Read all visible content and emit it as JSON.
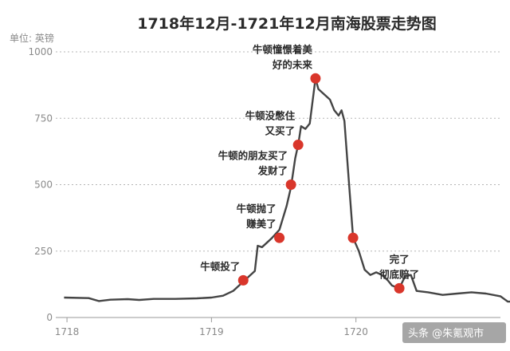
{
  "chart_data": {
    "type": "line",
    "title": "1718年12月-1721年12月南海股票走势图",
    "unit_label": "单位: 英镑",
    "xlim": [
      1717.95,
      1721.0
    ],
    "ylim": [
      0,
      1000
    ],
    "yticks": [
      0,
      250,
      500,
      750,
      1000
    ],
    "ytick_labels": [
      "0",
      "250",
      "500",
      "750",
      "1000"
    ],
    "xticks": [
      1718,
      1719,
      1720
    ],
    "xtick_labels": [
      "1718",
      "1719",
      "1720"
    ],
    "grid": true,
    "line_color": "#444444",
    "marker_color": "#d9362b",
    "series": [
      {
        "points": [
          [
            1717.98,
            75
          ],
          [
            1718.15,
            73
          ],
          [
            1718.22,
            62
          ],
          [
            1718.3,
            67
          ],
          [
            1718.42,
            69
          ],
          [
            1718.5,
            66
          ],
          [
            1718.6,
            70
          ],
          [
            1718.75,
            70
          ],
          [
            1718.9,
            72
          ],
          [
            1719.0,
            75
          ],
          [
            1719.08,
            82
          ],
          [
            1719.15,
            100
          ],
          [
            1719.22,
            135
          ],
          [
            1719.3,
            175
          ],
          [
            1719.32,
            270
          ],
          [
            1719.35,
            265
          ],
          [
            1719.38,
            280
          ],
          [
            1719.42,
            300
          ],
          [
            1719.47,
            330
          ],
          [
            1719.52,
            420
          ],
          [
            1719.55,
            490
          ],
          [
            1719.58,
            600
          ],
          [
            1719.6,
            650
          ],
          [
            1719.62,
            720
          ],
          [
            1719.65,
            710
          ],
          [
            1719.68,
            730
          ],
          [
            1719.72,
            900
          ],
          [
            1719.74,
            860
          ],
          [
            1719.78,
            840
          ],
          [
            1719.82,
            820
          ],
          [
            1719.85,
            780
          ],
          [
            1719.88,
            760
          ],
          [
            1719.9,
            780
          ],
          [
            1719.92,
            740
          ],
          [
            1719.95,
            520
          ],
          [
            1719.98,
            300
          ],
          [
            1720.02,
            250
          ],
          [
            1720.06,
            180
          ],
          [
            1720.1,
            160
          ],
          [
            1720.14,
            170
          ],
          [
            1720.18,
            160
          ],
          [
            1720.22,
            140
          ],
          [
            1720.25,
            120
          ],
          [
            1720.3,
            110
          ],
          [
            1720.34,
            155
          ],
          [
            1720.38,
            160
          ],
          [
            1720.42,
            100
          ],
          [
            1720.5,
            95
          ],
          [
            1720.6,
            85
          ],
          [
            1720.7,
            90
          ],
          [
            1720.8,
            95
          ],
          [
            1720.9,
            90
          ],
          [
            1721.0,
            80
          ],
          [
            1721.05,
            60
          ],
          [
            1721.4,
            55
          ],
          [
            1721.6,
            50
          ]
        ]
      }
    ],
    "markers": [
      {
        "x": 1719.22,
        "y": 140,
        "label_lines": [
          "牛顿投了"
        ]
      },
      {
        "x": 1719.47,
        "y": 300,
        "label_lines": [
          "牛顿抛了",
          "赚美了"
        ]
      },
      {
        "x": 1719.55,
        "y": 500,
        "label_lines": [
          "牛顿的朋友买了",
          "发财了"
        ]
      },
      {
        "x": 1719.6,
        "y": 650,
        "label_lines": [
          "牛顿没憋住",
          "又买了"
        ]
      },
      {
        "x": 1719.72,
        "y": 900,
        "label_lines": [
          "牛顿憧憬着美",
          "好的未来"
        ]
      },
      {
        "x": 1719.98,
        "y": 300,
        "label_lines": []
      },
      {
        "x": 1720.3,
        "y": 110,
        "label_lines": [
          "完了",
          "彻底赔了"
        ]
      }
    ]
  },
  "watermark": {
    "text": "头条 @朱氪观市"
  }
}
